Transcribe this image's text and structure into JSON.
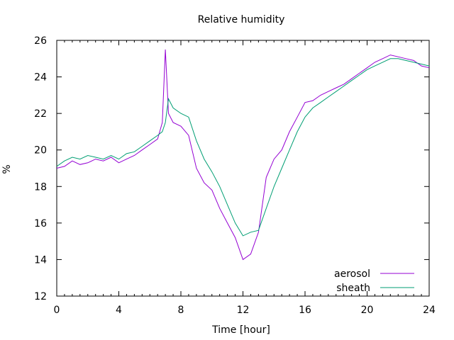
{
  "chart_data": {
    "type": "line",
    "title": "Relative humidity",
    "xlabel": "Time [hour]",
    "ylabel": "%",
    "xlim": [
      0,
      24
    ],
    "ylim": [
      12,
      26
    ],
    "xticks": [
      0,
      4,
      8,
      12,
      16,
      20,
      24
    ],
    "yticks": [
      12,
      14,
      16,
      18,
      20,
      22,
      24,
      26
    ],
    "xtick_labels": [
      "0",
      "4",
      "8",
      "12",
      "16",
      "20",
      "24"
    ],
    "ytick_labels": [
      "12",
      "14",
      "16",
      "18",
      "20",
      "22",
      "24",
      "26"
    ],
    "grid": false,
    "legend_position": "bottom-right",
    "series": [
      {
        "name": "aerosol",
        "color": "#9400d3",
        "x": [
          0,
          0.5,
          1,
          1.5,
          2,
          2.5,
          3,
          3.5,
          4,
          4.5,
          5,
          5.5,
          6,
          6.5,
          6.8,
          7,
          7.2,
          7.5,
          8,
          8.5,
          9,
          9.5,
          10,
          10.5,
          11,
          11.5,
          12,
          12.5,
          13,
          13.5,
          14,
          14.5,
          15,
          15.5,
          16,
          16.5,
          17,
          17.5,
          18,
          18.5,
          19,
          19.5,
          20,
          20.5,
          21,
          21.5,
          22,
          22.5,
          23,
          23.5,
          24
        ],
        "y": [
          19.0,
          19.1,
          19.4,
          19.2,
          19.3,
          19.5,
          19.4,
          19.6,
          19.3,
          19.5,
          19.7,
          20.0,
          20.3,
          20.6,
          21.5,
          25.5,
          22.0,
          21.5,
          21.3,
          20.8,
          19.0,
          18.2,
          17.8,
          16.8,
          16.0,
          15.2,
          14.0,
          14.3,
          15.5,
          18.5,
          19.5,
          20.0,
          21.0,
          21.8,
          22.6,
          22.7,
          23.0,
          23.2,
          23.4,
          23.6,
          23.9,
          24.2,
          24.5,
          24.8,
          25.0,
          25.2,
          25.1,
          25.0,
          24.9,
          24.6,
          24.5
        ]
      },
      {
        "name": "sheath",
        "color": "#009e73",
        "x": [
          0,
          0.5,
          1,
          1.5,
          2,
          2.5,
          3,
          3.5,
          4,
          4.5,
          5,
          5.5,
          6,
          6.5,
          6.8,
          7,
          7.2,
          7.5,
          8,
          8.5,
          9,
          9.5,
          10,
          10.5,
          11,
          11.5,
          12,
          12.5,
          13,
          13.5,
          14,
          14.5,
          15,
          15.5,
          16,
          16.5,
          17,
          17.5,
          18,
          18.5,
          19,
          19.5,
          20,
          20.5,
          21,
          21.5,
          22,
          22.5,
          23,
          23.5,
          24
        ],
        "y": [
          19.1,
          19.4,
          19.6,
          19.5,
          19.7,
          19.6,
          19.5,
          19.7,
          19.5,
          19.8,
          19.9,
          20.2,
          20.5,
          20.8,
          21.0,
          21.5,
          22.8,
          22.3,
          22.0,
          21.8,
          20.5,
          19.5,
          18.8,
          18.0,
          17.0,
          16.0,
          15.3,
          15.5,
          15.6,
          16.8,
          18.0,
          19.0,
          20.0,
          21.0,
          21.8,
          22.3,
          22.6,
          22.9,
          23.2,
          23.5,
          23.8,
          24.1,
          24.4,
          24.6,
          24.8,
          25.0,
          25.0,
          24.9,
          24.8,
          24.7,
          24.6
        ]
      }
    ]
  }
}
